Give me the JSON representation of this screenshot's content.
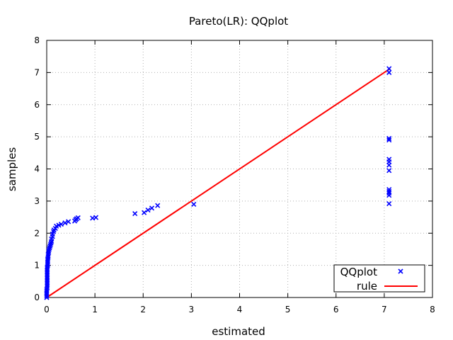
{
  "chart_data": {
    "type": "scatter",
    "title": "Pareto(LR): QQplot",
    "xlabel": "estimated",
    "ylabel": "samples",
    "xlim": [
      0,
      8
    ],
    "ylim": [
      0,
      8
    ],
    "xticks": [
      "0",
      "1",
      "2",
      "3",
      "4",
      "5",
      "6",
      "7",
      "8"
    ],
    "yticks": [
      "0",
      "1",
      "2",
      "3",
      "4",
      "5",
      "6",
      "7",
      "8"
    ],
    "grid": true,
    "legend_position": "bottom-right",
    "series": [
      {
        "name": "QQplot",
        "kind": "points",
        "color": "#0000ff",
        "marker": "x",
        "points": [
          [
            0.0,
            0.0
          ],
          [
            0.0,
            0.05
          ],
          [
            0.0,
            0.1
          ],
          [
            0.0,
            0.15
          ],
          [
            0.0,
            0.2
          ],
          [
            0.0,
            0.25
          ],
          [
            0.01,
            0.3
          ],
          [
            0.01,
            0.35
          ],
          [
            0.01,
            0.4
          ],
          [
            0.01,
            0.45
          ],
          [
            0.01,
            0.5
          ],
          [
            0.01,
            0.55
          ],
          [
            0.01,
            0.6
          ],
          [
            0.01,
            0.65
          ],
          [
            0.01,
            0.7
          ],
          [
            0.01,
            0.75
          ],
          [
            0.01,
            0.8
          ],
          [
            0.01,
            0.85
          ],
          [
            0.01,
            0.9
          ],
          [
            0.01,
            0.95
          ],
          [
            0.02,
            1.0
          ],
          [
            0.02,
            1.05
          ],
          [
            0.02,
            1.1
          ],
          [
            0.02,
            1.15
          ],
          [
            0.02,
            1.2
          ],
          [
            0.03,
            1.25
          ],
          [
            0.03,
            1.3
          ],
          [
            0.03,
            1.35
          ],
          [
            0.04,
            1.4
          ],
          [
            0.04,
            1.45
          ],
          [
            0.05,
            1.5
          ],
          [
            0.06,
            1.55
          ],
          [
            0.07,
            1.6
          ],
          [
            0.08,
            1.65
          ],
          [
            0.09,
            1.7
          ],
          [
            0.1,
            1.75
          ],
          [
            0.1,
            1.82
          ],
          [
            0.12,
            1.9
          ],
          [
            0.12,
            1.97
          ],
          [
            0.14,
            2.05
          ],
          [
            0.15,
            2.1
          ],
          [
            0.18,
            2.15
          ],
          [
            0.2,
            2.22
          ],
          [
            0.25,
            2.25
          ],
          [
            0.3,
            2.28
          ],
          [
            0.38,
            2.32
          ],
          [
            0.45,
            2.36
          ],
          [
            0.58,
            2.38
          ],
          [
            0.6,
            2.42
          ],
          [
            0.62,
            2.45
          ],
          [
            0.65,
            2.48
          ],
          [
            0.95,
            2.47
          ],
          [
            1.02,
            2.49
          ],
          [
            1.83,
            2.61
          ],
          [
            2.02,
            2.64
          ],
          [
            2.1,
            2.72
          ],
          [
            2.18,
            2.78
          ],
          [
            2.3,
            2.86
          ],
          [
            3.05,
            2.9
          ],
          [
            7.1,
            2.92
          ],
          [
            7.1,
            3.18
          ],
          [
            7.1,
            3.25
          ],
          [
            7.1,
            3.3
          ],
          [
            7.1,
            3.36
          ],
          [
            7.1,
            3.95
          ],
          [
            7.1,
            4.12
          ],
          [
            7.1,
            4.22
          ],
          [
            7.1,
            4.3
          ],
          [
            7.1,
            4.9
          ],
          [
            7.1,
            4.95
          ],
          [
            7.1,
            7.0
          ],
          [
            7.1,
            7.12
          ]
        ]
      },
      {
        "name": "rule",
        "kind": "line",
        "color": "#ff0000",
        "points": [
          [
            0,
            0
          ],
          [
            7.12,
            7.12
          ]
        ]
      }
    ]
  }
}
